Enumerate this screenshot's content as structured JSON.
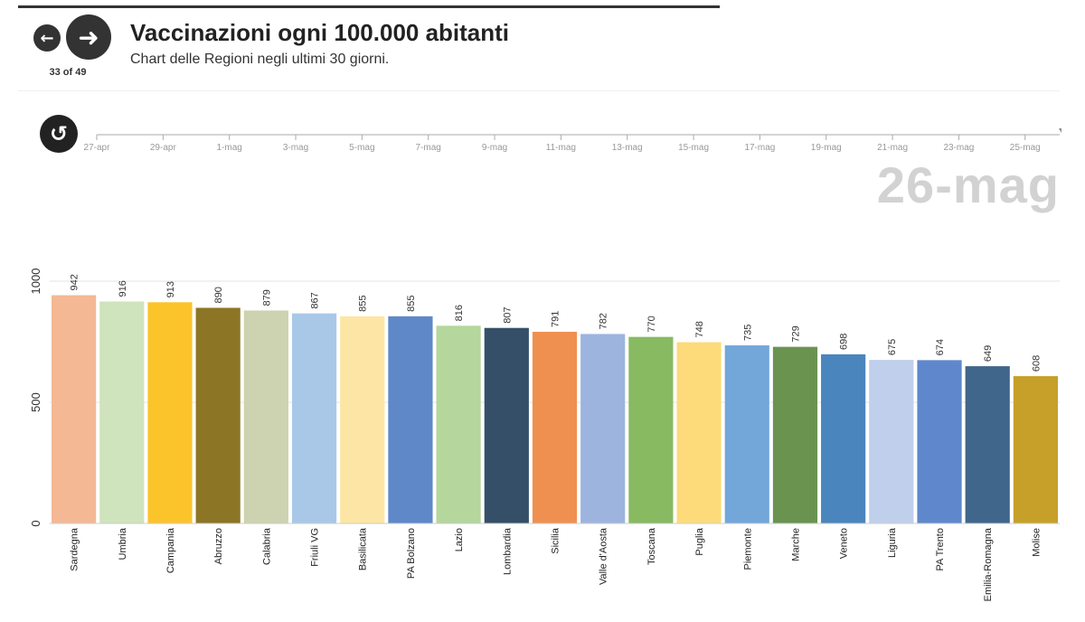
{
  "header": {
    "title": "Vaccinazioni ogni 100.000 abitanti",
    "subtitle": "Chart delle Regioni negli ultimi 30 giorni.",
    "counter": "33 of 49",
    "prev_icon": "←",
    "next_icon": "➜",
    "replay_icon": "↺"
  },
  "timeline": {
    "ticks": [
      "27-apr",
      "29-apr",
      "1-mag",
      "3-mag",
      "5-mag",
      "7-mag",
      "9-mag",
      "11-mag",
      "13-mag",
      "15-mag",
      "17-mag",
      "19-mag",
      "21-mag",
      "23-mag",
      "25-mag"
    ],
    "current_date": "26-mag",
    "progress": 1.0
  },
  "chart_data": {
    "type": "bar",
    "title": "Vaccinazioni ogni 100.000 abitanti",
    "xlabel": "",
    "ylabel": "",
    "ylim": [
      0,
      1000
    ],
    "yticks": [
      0,
      500,
      1000
    ],
    "grid": true,
    "categories": [
      "Sardegna",
      "Umbria",
      "Campania",
      "Abruzzo",
      "Calabria",
      "Friuli VG",
      "Basilicata",
      "PA Bolzano",
      "Lazio",
      "Lombardia",
      "Sicilia",
      "Valle d'Aosta",
      "Toscana",
      "Puglia",
      "Piemonte",
      "Marche",
      "Veneto",
      "Liguria",
      "PA Trento",
      "Emilia-Romagna",
      "Molise"
    ],
    "values": [
      942,
      916,
      913,
      890,
      879,
      867,
      855,
      855,
      816,
      807,
      791,
      782,
      770,
      748,
      735,
      729,
      698,
      675,
      674,
      649,
      608
    ],
    "colors": [
      "#f4b895",
      "#cfe3bd",
      "#fcc42b",
      "#8c7525",
      "#cdd2b1",
      "#a9c8e8",
      "#fde6a5",
      "#5f88c9",
      "#b5d69c",
      "#354f68",
      "#ef9051",
      "#9db4df",
      "#88ba62",
      "#fddb7a",
      "#73a7da",
      "#6a9350",
      "#4a86bd",
      "#c0cfeb",
      "#5f88cc",
      "#40668b",
      "#c7a02a"
    ]
  }
}
